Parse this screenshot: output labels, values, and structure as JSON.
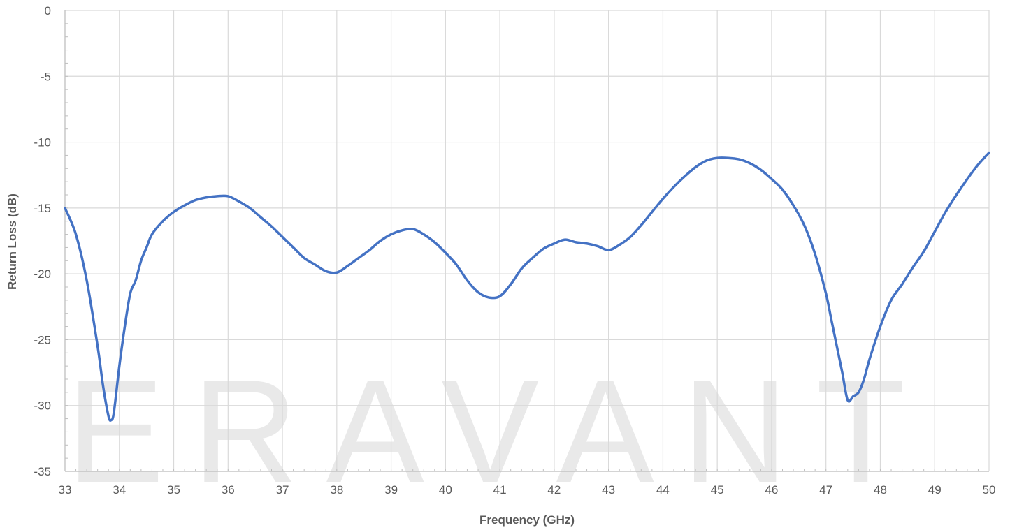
{
  "chart_data": {
    "type": "line",
    "title": "",
    "xlabel": "Frequency (GHz)",
    "ylabel": "Return Loss (dB)",
    "xlim": [
      33,
      50
    ],
    "ylim": [
      -35,
      0
    ],
    "x_ticks": [
      33,
      34,
      35,
      36,
      37,
      38,
      39,
      40,
      41,
      42,
      43,
      44,
      45,
      46,
      47,
      48,
      49,
      50
    ],
    "y_ticks": [
      0,
      -5,
      -10,
      -15,
      -20,
      -25,
      -30,
      -35
    ],
    "grid": true,
    "legend": "none",
    "watermark": "ERAVANT",
    "series": [
      {
        "color": "#4472c4",
        "x": [
          33.0,
          33.2,
          33.4,
          33.6,
          33.7,
          33.8,
          33.85,
          33.9,
          34.0,
          34.1,
          34.2,
          34.3,
          34.4,
          34.5,
          34.6,
          34.8,
          35.0,
          35.2,
          35.4,
          35.6,
          35.8,
          36.0,
          36.2,
          36.4,
          36.6,
          36.8,
          37.0,
          37.2,
          37.4,
          37.6,
          37.8,
          38.0,
          38.2,
          38.4,
          38.6,
          38.8,
          39.0,
          39.2,
          39.4,
          39.6,
          39.8,
          40.0,
          40.2,
          40.4,
          40.6,
          40.8,
          41.0,
          41.2,
          41.4,
          41.6,
          41.8,
          42.0,
          42.2,
          42.4,
          42.6,
          42.8,
          43.0,
          43.2,
          43.4,
          43.6,
          43.8,
          44.0,
          44.2,
          44.4,
          44.6,
          44.8,
          45.0,
          45.2,
          45.4,
          45.6,
          45.8,
          46.0,
          46.2,
          46.4,
          46.6,
          46.8,
          47.0,
          47.1,
          47.2,
          47.3,
          47.4,
          47.5,
          47.6,
          47.7,
          47.8,
          48.0,
          48.2,
          48.4,
          48.6,
          48.8,
          49.0,
          49.2,
          49.4,
          49.6,
          49.8,
          50.0
        ],
        "y": [
          -15.0,
          -17.0,
          -20.5,
          -25.5,
          -28.5,
          -30.8,
          -31.1,
          -30.5,
          -27.0,
          -24.0,
          -21.5,
          -20.5,
          -19.0,
          -18.0,
          -17.0,
          -16.0,
          -15.3,
          -14.8,
          -14.4,
          -14.2,
          -14.1,
          -14.1,
          -14.5,
          -15.0,
          -15.7,
          -16.4,
          -17.2,
          -18.0,
          -18.8,
          -19.3,
          -19.8,
          -19.9,
          -19.4,
          -18.8,
          -18.2,
          -17.5,
          -17.0,
          -16.7,
          -16.6,
          -17.0,
          -17.6,
          -18.4,
          -19.3,
          -20.5,
          -21.4,
          -21.8,
          -21.7,
          -20.8,
          -19.6,
          -18.8,
          -18.1,
          -17.7,
          -17.4,
          -17.6,
          -17.7,
          -17.9,
          -18.2,
          -17.8,
          -17.2,
          -16.3,
          -15.3,
          -14.3,
          -13.4,
          -12.6,
          -11.9,
          -11.4,
          -11.2,
          -11.2,
          -11.3,
          -11.6,
          -12.1,
          -12.8,
          -13.6,
          -14.8,
          -16.3,
          -18.5,
          -21.5,
          -23.5,
          -25.5,
          -27.5,
          -29.6,
          -29.3,
          -29.0,
          -28.0,
          -26.5,
          -24.0,
          -22.0,
          -20.8,
          -19.5,
          -18.3,
          -16.8,
          -15.3,
          -14.0,
          -12.8,
          -11.7,
          -10.8
        ]
      }
    ]
  }
}
